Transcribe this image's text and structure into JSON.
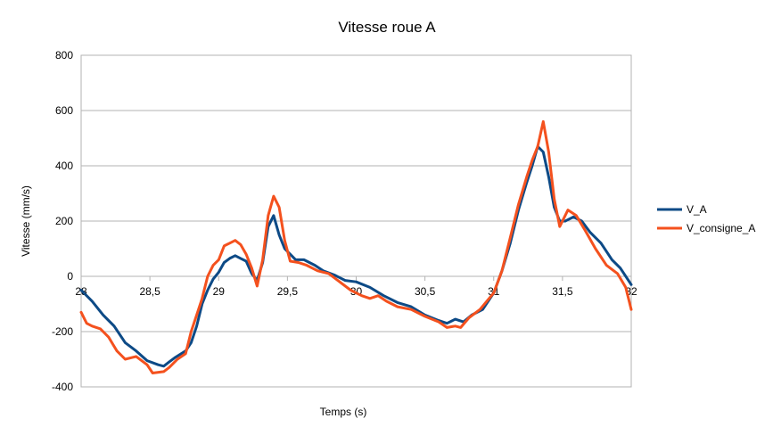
{
  "chart_data": {
    "type": "line",
    "title": "Vitesse roue A",
    "xlabel": "Temps (s)",
    "ylabel": "Vitesse (mm/s)",
    "xlim": [
      28,
      32
    ],
    "ylim": [
      -400,
      800
    ],
    "x_ticks": [
      "28",
      "28,5",
      "29",
      "29,5",
      "30",
      "30,5",
      "31",
      "31,5",
      "32"
    ],
    "y_ticks": [
      "-400",
      "-200",
      "0",
      "200",
      "400",
      "600",
      "800"
    ],
    "grid": "horizontal",
    "legend_position": "right",
    "series": [
      {
        "name": "V_A",
        "color": "#0d4a86",
        "points": [
          [
            28.0,
            -50
          ],
          [
            28.08,
            -90
          ],
          [
            28.16,
            -140
          ],
          [
            28.24,
            -180
          ],
          [
            28.32,
            -240
          ],
          [
            28.4,
            -270
          ],
          [
            28.48,
            -305
          ],
          [
            28.56,
            -320
          ],
          [
            28.6,
            -325
          ],
          [
            28.64,
            -310
          ],
          [
            28.68,
            -295
          ],
          [
            28.76,
            -270
          ],
          [
            28.8,
            -240
          ],
          [
            28.84,
            -180
          ],
          [
            28.88,
            -100
          ],
          [
            28.92,
            -50
          ],
          [
            28.96,
            -10
          ],
          [
            29.0,
            15
          ],
          [
            29.04,
            50
          ],
          [
            29.08,
            65
          ],
          [
            29.12,
            75
          ],
          [
            29.16,
            65
          ],
          [
            29.2,
            55
          ],
          [
            29.24,
            10
          ],
          [
            29.28,
            -15
          ],
          [
            29.32,
            50
          ],
          [
            29.36,
            180
          ],
          [
            29.4,
            220
          ],
          [
            29.44,
            150
          ],
          [
            29.48,
            100
          ],
          [
            29.52,
            80
          ],
          [
            29.56,
            60
          ],
          [
            29.62,
            60
          ],
          [
            29.7,
            40
          ],
          [
            29.76,
            20
          ],
          [
            29.84,
            5
          ],
          [
            29.92,
            -15
          ],
          [
            30.0,
            -20
          ],
          [
            30.1,
            -40
          ],
          [
            30.2,
            -70
          ],
          [
            30.3,
            -95
          ],
          [
            30.4,
            -110
          ],
          [
            30.5,
            -140
          ],
          [
            30.6,
            -160
          ],
          [
            30.66,
            -170
          ],
          [
            30.72,
            -155
          ],
          [
            30.78,
            -165
          ],
          [
            30.84,
            -140
          ],
          [
            30.92,
            -120
          ],
          [
            31.0,
            -60
          ],
          [
            31.06,
            20
          ],
          [
            31.12,
            120
          ],
          [
            31.18,
            240
          ],
          [
            31.24,
            340
          ],
          [
            31.28,
            400
          ],
          [
            31.32,
            470
          ],
          [
            31.36,
            450
          ],
          [
            31.4,
            360
          ],
          [
            31.44,
            250
          ],
          [
            31.48,
            200
          ],
          [
            31.52,
            200
          ],
          [
            31.58,
            215
          ],
          [
            31.64,
            200
          ],
          [
            31.7,
            160
          ],
          [
            31.78,
            120
          ],
          [
            31.86,
            60
          ],
          [
            31.92,
            30
          ],
          [
            32.0,
            -30
          ]
        ]
      },
      {
        "name": "V_consigne_A",
        "color": "#f4511e",
        "points": [
          [
            28.0,
            -130
          ],
          [
            28.04,
            -170
          ],
          [
            28.08,
            -180
          ],
          [
            28.14,
            -190
          ],
          [
            28.2,
            -220
          ],
          [
            28.26,
            -270
          ],
          [
            28.32,
            -300
          ],
          [
            28.4,
            -290
          ],
          [
            28.48,
            -320
          ],
          [
            28.52,
            -350
          ],
          [
            28.6,
            -345
          ],
          [
            28.64,
            -330
          ],
          [
            28.7,
            -300
          ],
          [
            28.76,
            -280
          ],
          [
            28.8,
            -200
          ],
          [
            28.84,
            -140
          ],
          [
            28.88,
            -80
          ],
          [
            28.92,
            0
          ],
          [
            28.96,
            40
          ],
          [
            29.0,
            60
          ],
          [
            29.04,
            110
          ],
          [
            29.08,
            120
          ],
          [
            29.12,
            130
          ],
          [
            29.16,
            115
          ],
          [
            29.2,
            80
          ],
          [
            29.24,
            30
          ],
          [
            29.28,
            -35
          ],
          [
            29.32,
            60
          ],
          [
            29.36,
            220
          ],
          [
            29.4,
            290
          ],
          [
            29.44,
            250
          ],
          [
            29.48,
            130
          ],
          [
            29.52,
            55
          ],
          [
            29.58,
            50
          ],
          [
            29.64,
            40
          ],
          [
            29.72,
            20
          ],
          [
            29.8,
            10
          ],
          [
            29.88,
            -20
          ],
          [
            29.96,
            -50
          ],
          [
            30.04,
            -70
          ],
          [
            30.1,
            -80
          ],
          [
            30.16,
            -70
          ],
          [
            30.22,
            -90
          ],
          [
            30.3,
            -110
          ],
          [
            30.4,
            -120
          ],
          [
            30.5,
            -145
          ],
          [
            30.6,
            -165
          ],
          [
            30.66,
            -185
          ],
          [
            30.72,
            -180
          ],
          [
            30.76,
            -185
          ],
          [
            30.82,
            -150
          ],
          [
            30.9,
            -120
          ],
          [
            31.0,
            -60
          ],
          [
            31.06,
            20
          ],
          [
            31.12,
            140
          ],
          [
            31.18,
            260
          ],
          [
            31.24,
            360
          ],
          [
            31.28,
            420
          ],
          [
            31.32,
            470
          ],
          [
            31.36,
            560
          ],
          [
            31.4,
            450
          ],
          [
            31.44,
            280
          ],
          [
            31.48,
            180
          ],
          [
            31.54,
            240
          ],
          [
            31.6,
            220
          ],
          [
            31.66,
            170
          ],
          [
            31.74,
            100
          ],
          [
            31.82,
            40
          ],
          [
            31.9,
            10
          ],
          [
            31.96,
            -40
          ],
          [
            32.0,
            -120
          ]
        ]
      }
    ]
  }
}
